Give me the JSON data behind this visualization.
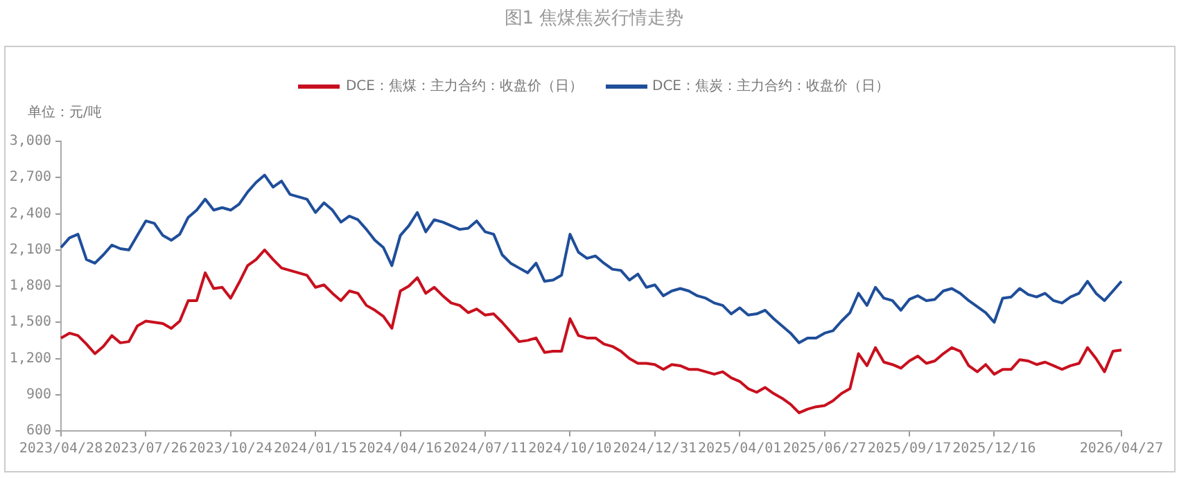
{
  "chart_data": {
    "type": "line",
    "title": "图1 焦煤焦炭行情走势",
    "ylabel": "单位：元/吨",
    "legend": "top",
    "categories": [
      "2023/04/28",
      null,
      null,
      null,
      null,
      null,
      null,
      null,
      null,
      null,
      "2023/07/26",
      null,
      null,
      null,
      null,
      null,
      null,
      null,
      null,
      null,
      "2023/10/24",
      null,
      null,
      null,
      null,
      null,
      null,
      null,
      null,
      null,
      "2024/01/15",
      null,
      null,
      null,
      null,
      null,
      null,
      null,
      null,
      null,
      "2024/04/16",
      null,
      null,
      null,
      null,
      null,
      null,
      null,
      null,
      null,
      "2024/07/11",
      null,
      null,
      null,
      null,
      null,
      null,
      null,
      null,
      null,
      "2024/10/10",
      null,
      null,
      null,
      null,
      null,
      null,
      null,
      null,
      null,
      "2024/12/31",
      null,
      null,
      null,
      null,
      null,
      null,
      null,
      null,
      null,
      "2025/04/01",
      null,
      null,
      null,
      null,
      null,
      null,
      null,
      null,
      null,
      "2025/06/27",
      null,
      null,
      null,
      null,
      null,
      null,
      null,
      null,
      null,
      "2025/09/17",
      null,
      null,
      null,
      null,
      null,
      null,
      null,
      null,
      null,
      "2025/12/16",
      null,
      null,
      null,
      null,
      null,
      null,
      null,
      null,
      null,
      null,
      null,
      null,
      null,
      null,
      "2026/04/27"
    ],
    "ylim": [
      600,
      3000
    ],
    "yticks": [
      {
        "value": 600,
        "label": "600"
      },
      {
        "value": 900,
        "label": "900"
      },
      {
        "value": 1200,
        "label": "1,200"
      },
      {
        "value": 1500,
        "label": "1,500"
      },
      {
        "value": 1800,
        "label": "1,800"
      },
      {
        "value": 2100,
        "label": "2,100"
      },
      {
        "value": 2400,
        "label": "2,400"
      },
      {
        "value": 2700,
        "label": "2,700"
      },
      {
        "value": 3000,
        "label": "3,000"
      }
    ],
    "series": [
      {
        "name": "DCE：焦煤：主力合约：收盘价（日）",
        "color": "#c8101e",
        "values": [
          1370,
          1410,
          1390,
          1320,
          1240,
          1300,
          1390,
          1330,
          1340,
          1470,
          1510,
          1500,
          1490,
          1450,
          1510,
          1680,
          1680,
          1910,
          1780,
          1790,
          1700,
          1830,
          1970,
          2020,
          2100,
          2020,
          1950,
          1930,
          1910,
          1890,
          1790,
          1810,
          1740,
          1680,
          1760,
          1740,
          1640,
          1600,
          1550,
          1450,
          1760,
          1800,
          1870,
          1740,
          1790,
          1720,
          1660,
          1640,
          1580,
          1610,
          1560,
          1570,
          1500,
          1420,
          1340,
          1350,
          1370,
          1250,
          1260,
          1260,
          1530,
          1390,
          1370,
          1370,
          1320,
          1300,
          1260,
          1200,
          1160,
          1160,
          1150,
          1110,
          1150,
          1140,
          1110,
          1110,
          1090,
          1070,
          1090,
          1040,
          1010,
          950,
          920,
          960,
          910,
          870,
          820,
          750,
          780,
          800,
          810,
          850,
          910,
          950,
          1240,
          1140,
          1290,
          1170,
          1150,
          1120,
          1180,
          1220,
          1160,
          1180,
          1240,
          1290,
          1260,
          1140,
          1090,
          1150,
          1070,
          1110,
          1110,
          1190,
          1180,
          1150,
          1170,
          1140,
          1110,
          1140,
          1160,
          1290,
          1200,
          1090,
          1260,
          1270
        ]
      },
      {
        "name": "DCE：焦炭：主力合约：收盘价（日）",
        "color": "#1f4e9a",
        "values": [
          2120,
          2200,
          2230,
          2020,
          1990,
          2060,
          2140,
          2110,
          2100,
          2220,
          2340,
          2320,
          2220,
          2180,
          2230,
          2370,
          2430,
          2520,
          2430,
          2450,
          2430,
          2480,
          2580,
          2660,
          2720,
          2620,
          2670,
          2560,
          2540,
          2520,
          2410,
          2490,
          2430,
          2330,
          2380,
          2350,
          2270,
          2180,
          2120,
          1970,
          2220,
          2300,
          2410,
          2250,
          2350,
          2330,
          2300,
          2270,
          2280,
          2340,
          2250,
          2230,
          2060,
          1990,
          1950,
          1910,
          1990,
          1840,
          1850,
          1890,
          2230,
          2080,
          2030,
          2050,
          1990,
          1940,
          1930,
          1850,
          1900,
          1790,
          1810,
          1720,
          1760,
          1780,
          1760,
          1720,
          1700,
          1660,
          1640,
          1570,
          1620,
          1560,
          1570,
          1600,
          1530,
          1470,
          1410,
          1330,
          1370,
          1370,
          1410,
          1430,
          1510,
          1580,
          1740,
          1640,
          1790,
          1700,
          1680,
          1600,
          1690,
          1720,
          1680,
          1690,
          1760,
          1780,
          1740,
          1680,
          1630,
          1580,
          1500,
          1700,
          1710,
          1780,
          1730,
          1710,
          1740,
          1680,
          1660,
          1710,
          1740,
          1840,
          1740,
          1680,
          1760,
          1840
        ]
      }
    ]
  }
}
